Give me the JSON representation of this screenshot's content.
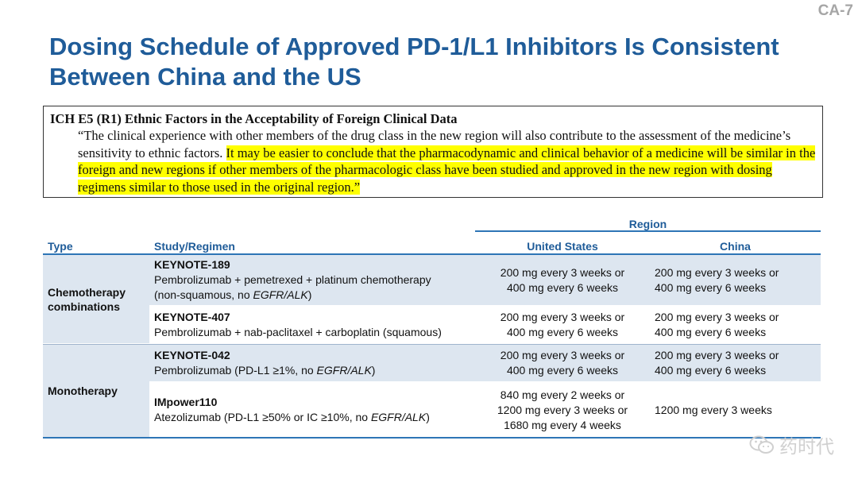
{
  "slide_id": "CA-7",
  "title": "Dosing Schedule of Approved PD-1/L1 Inhibitors Is Consistent Between China and the US",
  "quote": {
    "heading": "ICH E5 (R1) Ethnic Factors in the Acceptability of Foreign Clinical Data",
    "text_plain": "“The clinical experience with other members of the drug class in the new region will also contribute to the assessment of the medicine’s sensitivity to ethnic factors. ",
    "text_highlight": "It may be easier to conclude that the pharmacodynamic and clinical behavior of a medicine will be similar in the foreign and new regions if other members of the pharmacologic class have been studied and approved in the new region with dosing regimens similar to those used in the original region.”",
    "highlight_color": "#ffff00"
  },
  "table": {
    "region_label": "Region",
    "headers": {
      "type": "Type",
      "study": "Study/Regimen",
      "us": "United States",
      "china": "China"
    },
    "groups": [
      {
        "type": "Chemotherapy combinations",
        "rows": [
          {
            "study": "KEYNOTE-189",
            "regimen": "Pembrolizumab + pemetrexed + platinum chemotherapy",
            "regimen_extra_prefix": "(non-squamous, no ",
            "regimen_extra_italic": "EGFR/ALK",
            "regimen_extra_suffix": ")",
            "us": [
              "200 mg every 3 weeks or",
              "400 mg every 6 weeks"
            ],
            "china": [
              "200 mg every 3 weeks or",
              "400 mg every 6 weeks"
            ]
          },
          {
            "study": "KEYNOTE-407",
            "regimen": "Pembrolizumab + nab-paclitaxel + carboplatin (squamous)",
            "us": [
              "200 mg every 3 weeks or",
              "400 mg every 6 weeks"
            ],
            "china": [
              "200 mg every 3 weeks or",
              "400 mg every 6 weeks"
            ]
          }
        ]
      },
      {
        "type": "Monotherapy",
        "rows": [
          {
            "study": "KEYNOTE-042",
            "regimen_prefix": "Pembrolizumab (PD-L1 ≥1%, no ",
            "regimen_italic": "EGFR/ALK",
            "regimen_suffix": ")",
            "us": [
              "200 mg every 3 weeks or",
              "400 mg every 6 weeks"
            ],
            "china": [
              "200 mg every 3 weeks or",
              "400 mg every 6 weeks"
            ]
          },
          {
            "study": "IMpower110",
            "regimen_prefix": "Atezolizumab (PD-L1 ≥50% or IC ≥10%, no ",
            "regimen_italic": "EGFR/ALK",
            "regimen_suffix": ")",
            "us": [
              "840 mg every 2 weeks or",
              "1200 mg every 3 weeks or",
              "1680 mg every 4 weeks"
            ],
            "china": [
              "1200 mg every 3 weeks"
            ]
          }
        ]
      }
    ],
    "shade_color": "#dde6f0",
    "accent_color": "#2e75b6"
  },
  "watermark": {
    "text": "药时代",
    "icon": "wechat-icon"
  }
}
